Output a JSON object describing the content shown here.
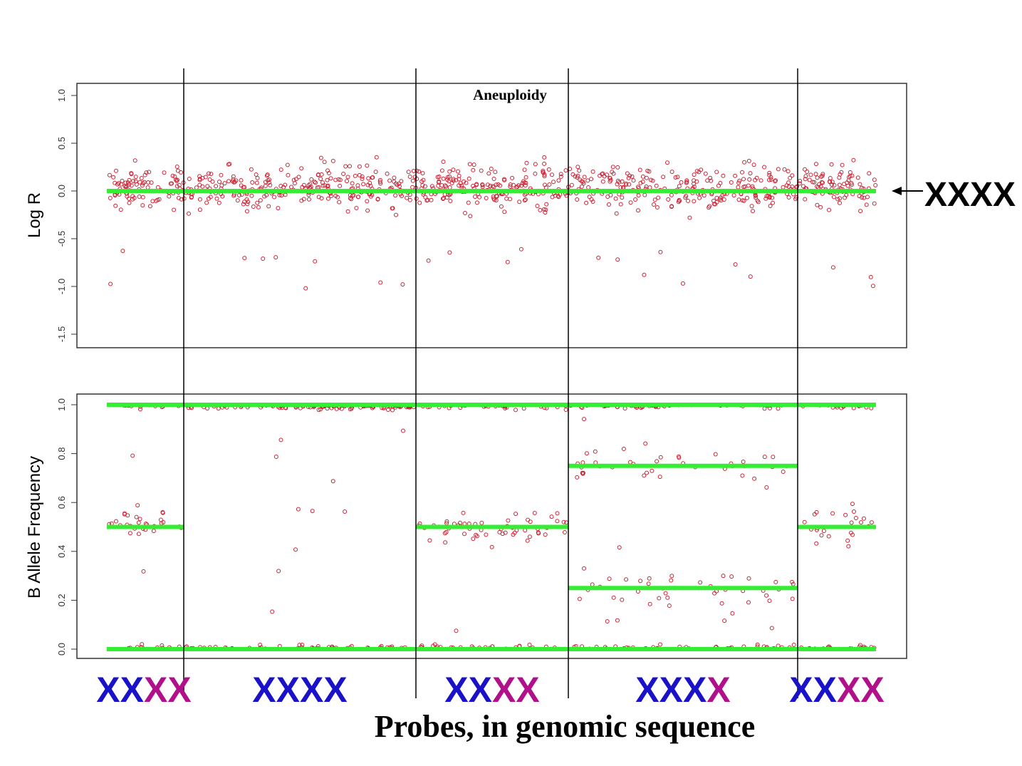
{
  "chart_data": [
    {
      "type": "scatter",
      "title": "Aneuploidy",
      "ylabel": "Log R",
      "ylim": [
        -1.5,
        1.0
      ],
      "yticks": [
        "1.0",
        "0.5",
        "0.0",
        "-0.5",
        "-1.0",
        "-1.5"
      ],
      "reference_lines": [
        0.0
      ],
      "side_label": "XXXX",
      "series_color": "#cc2233",
      "line_color": "#33ee33"
    },
    {
      "type": "scatter",
      "ylabel": "B Allele Frequency",
      "ylim": [
        0.0,
        1.0
      ],
      "yticks": [
        "1.0",
        "0.8",
        "0.6",
        "0.4",
        "0.2",
        "0.0"
      ],
      "series_color": "#cc2233",
      "line_color": "#33ee33",
      "segments": [
        {
          "genotype": [
            "XX",
            "XX"
          ],
          "bands": [
            0.0,
            0.5,
            1.0
          ]
        },
        {
          "genotype": [
            "XXXX",
            ""
          ],
          "bands": [
            0.0,
            1.0
          ]
        },
        {
          "genotype": [
            "XX",
            "XX"
          ],
          "bands": [
            0.0,
            0.5,
            1.0
          ]
        },
        {
          "genotype": [
            "XXX",
            "X"
          ],
          "bands": [
            0.0,
            0.25,
            0.75,
            1.0
          ]
        },
        {
          "genotype": [
            "XX",
            "XX"
          ],
          "bands": [
            0.0,
            0.5,
            1.0
          ]
        }
      ]
    }
  ],
  "xlabel": "Probes, in genomic sequence",
  "genotype_colors": {
    "primary": "#1a12c8",
    "secondary": "#b0108a"
  },
  "text_color": "#000000"
}
